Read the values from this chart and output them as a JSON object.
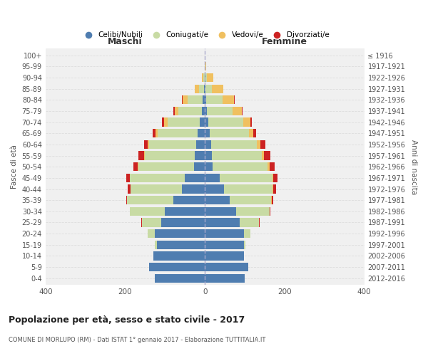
{
  "age_groups": [
    "100+",
    "95-99",
    "90-94",
    "85-89",
    "80-84",
    "75-79",
    "70-74",
    "65-69",
    "60-64",
    "55-59",
    "50-54",
    "45-49",
    "40-44",
    "35-39",
    "30-34",
    "25-29",
    "20-24",
    "15-19",
    "10-14",
    "5-9",
    "0-4"
  ],
  "birth_years": [
    "≤ 1916",
    "1917-1921",
    "1922-1926",
    "1927-1931",
    "1932-1936",
    "1937-1941",
    "1942-1946",
    "1947-1951",
    "1952-1956",
    "1957-1961",
    "1962-1966",
    "1967-1971",
    "1972-1976",
    "1977-1981",
    "1982-1986",
    "1987-1991",
    "1992-1996",
    "1997-2001",
    "2002-2006",
    "2007-2011",
    "2012-2016"
  ],
  "male": {
    "celibi": [
      0,
      0,
      1,
      3,
      5,
      8,
      12,
      18,
      22,
      25,
      28,
      50,
      58,
      80,
      100,
      110,
      125,
      120,
      130,
      140,
      125
    ],
    "coniugati": [
      0,
      0,
      3,
      12,
      38,
      58,
      82,
      100,
      118,
      125,
      138,
      138,
      128,
      115,
      88,
      48,
      18,
      5,
      0,
      0,
      0
    ],
    "vedovi": [
      0,
      1,
      4,
      10,
      12,
      10,
      8,
      5,
      3,
      2,
      2,
      1,
      1,
      0,
      0,
      0,
      0,
      0,
      0,
      0,
      0
    ],
    "divorziati": [
      0,
      0,
      0,
      1,
      2,
      3,
      5,
      8,
      10,
      15,
      12,
      8,
      7,
      3,
      1,
      1,
      0,
      0,
      0,
      0,
      0
    ]
  },
  "female": {
    "nubili": [
      0,
      0,
      1,
      2,
      3,
      5,
      8,
      12,
      16,
      18,
      20,
      38,
      48,
      62,
      78,
      88,
      98,
      98,
      98,
      108,
      100
    ],
    "coniugate": [
      0,
      1,
      4,
      16,
      42,
      65,
      88,
      98,
      115,
      125,
      138,
      132,
      122,
      105,
      85,
      48,
      16,
      4,
      0,
      0,
      0
    ],
    "vedove": [
      0,
      2,
      16,
      28,
      28,
      22,
      18,
      12,
      8,
      6,
      4,
      2,
      1,
      1,
      0,
      0,
      0,
      0,
      0,
      0,
      0
    ],
    "divorziate": [
      0,
      0,
      0,
      1,
      2,
      3,
      4,
      6,
      12,
      16,
      14,
      10,
      8,
      4,
      2,
      1,
      0,
      0,
      0,
      0,
      0
    ]
  },
  "colors": {
    "celibi": "#4f7db0",
    "coniugati": "#c8dba4",
    "vedovi": "#f0c060",
    "divorziati": "#cc2222"
  },
  "legend_labels": [
    "Celibi/Nubili",
    "Coniugati/e",
    "Vedovi/e",
    "Divorziati/e"
  ],
  "title": "Popolazione per età, sesso e stato civile - 2017",
  "subtitle": "COMUNE DI MORLUPO (RM) - Dati ISTAT 1° gennaio 2017 - Elaborazione TUTTITALIA.IT",
  "xlabel_left": "Maschi",
  "xlabel_right": "Femmine",
  "ylabel_left": "Fasce di età",
  "ylabel_right": "Anni di nascita",
  "xlim": 400,
  "background_color": "#ffffff",
  "plot_bg_color": "#f0f0f0",
  "grid_color": "#dddddd"
}
